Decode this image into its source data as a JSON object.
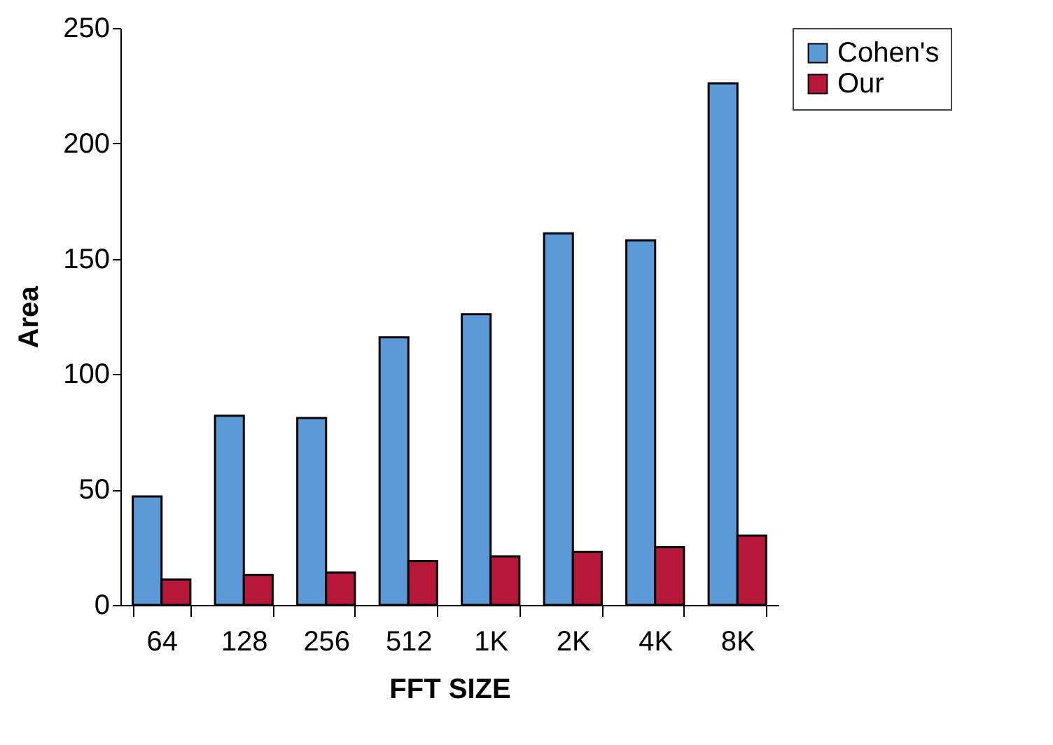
{
  "chart_data": {
    "type": "bar",
    "xlabel": "FFT SIZE",
    "ylabel": "Area",
    "categories": [
      "64",
      "128",
      "256",
      "512",
      "1K",
      "2K",
      "4K",
      "8K"
    ],
    "series": [
      {
        "name": "Cohen's",
        "color": "#5b9ad6",
        "values": [
          47,
          82,
          81,
          116,
          126,
          161,
          158,
          226
        ]
      },
      {
        "name": "Our",
        "color": "#b51838",
        "values": [
          11,
          13,
          14,
          19,
          21,
          23,
          25,
          30
        ]
      }
    ],
    "ylim": [
      0,
      250
    ],
    "yticks": [
      0,
      50,
      100,
      150,
      200,
      250
    ],
    "grid": false,
    "legend": "right"
  }
}
